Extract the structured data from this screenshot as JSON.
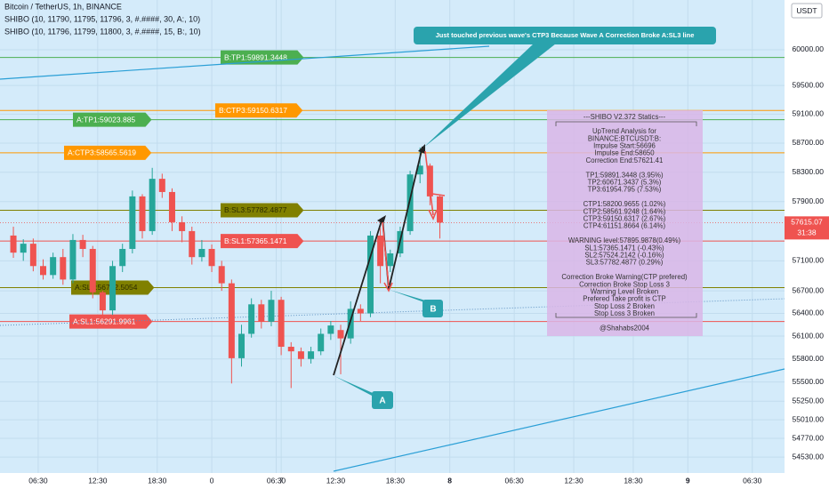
{
  "chart_data": {
    "type": "candlestick",
    "title": "Bitcoin / TetherUS, 1h, BINANCE",
    "indicators": [
      "SHIBO (10, 11790, 11795, 11796, 3, #.####, 30, A:, 10)",
      "SHIBO (10, 11796, 11799, 11800, 3, #.####, 15, B:, 10)"
    ],
    "currency": "USDT",
    "x": [
      -20,
      -19,
      -18,
      -17,
      -16,
      -15,
      -14,
      -13,
      -12,
      -11,
      -10,
      -9,
      -8,
      -7,
      -6,
      -5,
      -4,
      -3,
      -2,
      -1,
      0,
      1,
      2,
      3,
      4,
      5,
      6,
      7,
      8,
      9,
      10,
      11,
      12,
      13,
      14,
      15,
      16,
      17,
      18,
      19,
      20,
      21,
      22,
      23
    ],
    "open": [
      57440,
      57210,
      57330,
      57030,
      56910,
      57150,
      56850,
      57380,
      57260,
      56680,
      56440,
      57030,
      57260,
      57970,
      57500,
      58210,
      58030,
      57620,
      57500,
      57150,
      57260,
      57030,
      56800,
      55810,
      56130,
      56520,
      56290,
      56580,
      55960,
      55900,
      55800,
      55900,
      56130,
      56180,
      56070,
      56460,
      56400,
      57440,
      57030,
      57200,
      57500,
      58270,
      58390,
      57970
    ],
    "high": [
      57560,
      57390,
      57400,
      57120,
      57210,
      57260,
      57460,
      57450,
      57300,
      56700,
      57100,
      57330,
      58050,
      58000,
      58360,
      58280,
      58080,
      57700,
      57560,
      57380,
      57320,
      57100,
      56850,
      56250,
      56600,
      56580,
      56700,
      56620,
      56020,
      55950,
      55960,
      56200,
      56300,
      56250,
      56560,
      56520,
      57500,
      57540,
      57250,
      57560,
      58320,
      58640,
      58420,
      57980
    ],
    "low": [
      57140,
      57100,
      56960,
      56850,
      56860,
      56780,
      56800,
      57150,
      56600,
      56350,
      56380,
      56950,
      57200,
      57400,
      57450,
      57950,
      57500,
      57350,
      57050,
      57090,
      56950,
      56700,
      55480,
      55700,
      56080,
      56200,
      56230,
      55850,
      55420,
      55700,
      55740,
      55850,
      56050,
      55600,
      56000,
      56300,
      56350,
      56800,
      56950,
      57150,
      57450,
      58150,
      57850,
      57400
    ],
    "close": [
      57210,
      57330,
      57030,
      56910,
      57150,
      56850,
      57380,
      57260,
      56680,
      56440,
      57030,
      57260,
      57970,
      57500,
      58210,
      58030,
      57620,
      57500,
      57150,
      57260,
      57030,
      56800,
      55810,
      56130,
      56520,
      56290,
      56580,
      55960,
      55900,
      55800,
      55900,
      56130,
      56240,
      56070,
      56460,
      56400,
      57440,
      57030,
      57200,
      57500,
      58270,
      58390,
      57970,
      57615.07
    ],
    "up_color": "#26a69a",
    "down_color": "#ef5350",
    "xlim": [
      -21.35,
      57.75
    ],
    "xticks": [
      {
        "value": -17.5,
        "label": "06:30"
      },
      {
        "value": -11.5,
        "label": "12:30"
      },
      {
        "value": -5.5,
        "label": "18:30"
      },
      0,
      7,
      {
        "value": 6.5,
        "label": "06:30"
      },
      {
        "value": 12.5,
        "label": "12:30"
      },
      {
        "value": 18.5,
        "label": "18:30"
      },
      {
        "value": 24,
        "label": "8"
      },
      {
        "value": 30.5,
        "label": "06:30"
      },
      {
        "value": 36.5,
        "label": "12:30"
      },
      {
        "value": 42.5,
        "label": "18:30"
      },
      {
        "value": 48,
        "label": "9"
      },
      {
        "value": 54.5,
        "label": "06:30"
      }
    ],
    "ylim": [
      54349,
      60705
    ],
    "log_scale": true,
    "grid": true,
    "yticks": [
      {
        "value": 60000,
        "label": "60000.00"
      },
      {
        "value": 59500,
        "label": "59500.00"
      },
      {
        "value": 59100,
        "label": "59100.00"
      },
      {
        "value": 58700,
        "label": "58700.00"
      },
      {
        "value": 58300,
        "label": "58300.00"
      },
      {
        "value": 57900,
        "label": "57900.00"
      },
      {
        "value": 57100,
        "label": "57100.00"
      },
      {
        "value": 56700,
        "label": "56700.00"
      },
      {
        "value": 56400,
        "label": "56400.00"
      },
      {
        "value": 56100,
        "label": "56100.00"
      },
      {
        "value": 55800,
        "label": "55800.00"
      },
      {
        "value": 55500,
        "label": "55500.00"
      },
      {
        "value": 55250,
        "label": "55250.00"
      },
      {
        "value": 55010,
        "label": "55010.00"
      },
      {
        "value": 54770,
        "label": "54770.00"
      },
      {
        "value": 54530,
        "label": "54530.00"
      }
    ],
    "last_price": {
      "value": 57615.07,
      "label": "57615.07"
    },
    "countdown": "31:38",
    "levels": [
      {
        "label": "B:TP1:59891.3448",
        "value": 59891.3448,
        "color": "#4caf50"
      },
      {
        "label": "B:CTP3:59150.6317",
        "value": 59150.6317,
        "color": "#ff9800"
      },
      {
        "label": "A:TP1:59023.885",
        "value": 59023.885,
        "color": "#4caf50"
      },
      {
        "label": "A:CTP3:58565.5619",
        "value": 58565.5619,
        "color": "#ff9800"
      },
      {
        "label": "B:SL3:57782.4877",
        "value": 57782.4877,
        "color": "#808000"
      },
      {
        "label": "B:SL1:57365.1471",
        "value": 57365.1471,
        "color": "#ef5350"
      },
      {
        "label": "A:SL3:56742.5054",
        "value": 56742.5054,
        "color": "#808000"
      },
      {
        "label": "A:SL1:56291.9961",
        "value": 56291.9961,
        "color": "#ef5350"
      }
    ],
    "callout": "Just touched previous wave's CTP3 Because Wave A Correction Broke A:SL3 line",
    "wave_labels": [
      "A",
      "B"
    ],
    "stats": {
      "title": "---SHIBO V2.372 Statics---",
      "groups": [
        [
          "UpTrend Analysis for",
          "BINANCE:BTCUSDT:B:",
          "Impulse Start:56696",
          "Impulse End:58650",
          "Correction End:57621.41"
        ],
        [
          "TP1:59891.3448 (3.95%)",
          "TP2:60671.3437 (5.3%)",
          "TP3:61954.795 (7.53%)"
        ],
        [
          "CTP1:58200.9655 (1.02%)",
          "CTP2:58561.9248 (1.64%)",
          "CTP3:59150.6317 (2.67%)",
          "CTP4:61151.8664 (6.14%)"
        ],
        [
          "WARNING level:57895.9878(0.49%)",
          "SL1:57365.1471 (-0.43%)",
          "SL2:57524.2142 (-0.16%)",
          "SL3:57782.4877 (0.29%)"
        ],
        [
          "Correction Broke Warning(CTP prefered)",
          "Correction Broke Stop Loss 3",
          "Warning Level Broken",
          "Prefered Take profit is CTP",
          "Stop Loss 2 Broken",
          "Stop Loss 3 Broken"
        ],
        [
          "@Shahabs2004"
        ]
      ]
    }
  }
}
